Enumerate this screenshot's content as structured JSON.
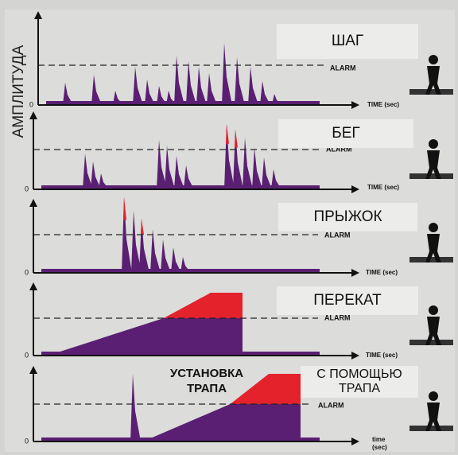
{
  "axis_label": "АМПЛИТУДА",
  "panels": [
    {
      "title_lines": [
        "ШАГ"
      ],
      "alarm": "ALARM",
      "time_lines": [
        "TIME (sec)"
      ],
      "zero": "0"
    },
    {
      "title_lines": [
        "БЕГ"
      ],
      "alarm": "ALARM",
      "time_lines": [
        "TIME (sec)"
      ],
      "zero": "0"
    },
    {
      "title_lines": [
        "ПРЫЖОК"
      ],
      "alarm": "ALARM",
      "time_lines": [
        "TIME (sec)"
      ],
      "zero": "0"
    },
    {
      "title_lines": [
        "ПЕРЕКАТ"
      ],
      "alarm": "ALARM",
      "time_lines": [
        "TIME (sec)"
      ],
      "zero": "0"
    },
    {
      "title_lines": [
        "С ПОМОЩЬЮ",
        "ТРАПА"
      ],
      "setup_lines": [
        "УСТАНОВКА",
        "ТРАПА"
      ],
      "alarm": "ALARM",
      "time_lines": [
        "time",
        "(sec)"
      ],
      "zero": "0"
    }
  ]
}
